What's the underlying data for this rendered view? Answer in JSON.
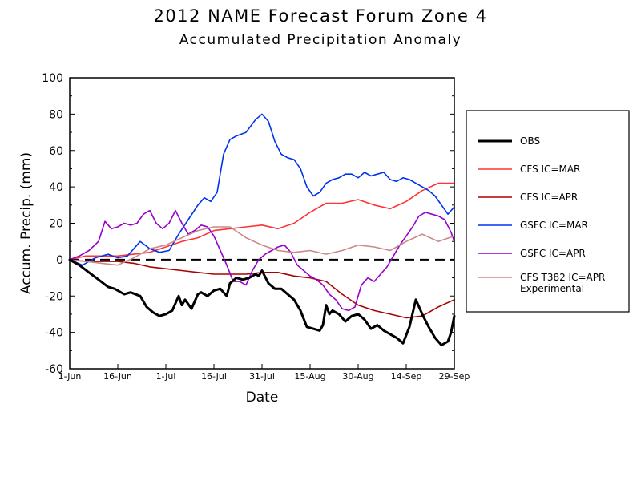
{
  "chart_data": {
    "type": "line",
    "title": "2012 NAME Forecast Forum Zone 4",
    "subtitle": "Accumulated Precipitation Anomaly",
    "xlabel": "Date",
    "ylabel": "Accum. Precip. (mm)",
    "ylim": [
      -60,
      100
    ],
    "xlim": [
      0,
      120
    ],
    "x_ticks": [
      {
        "x": 0,
        "label": "1-Jun"
      },
      {
        "x": 15,
        "label": "16-Jun"
      },
      {
        "x": 30,
        "label": "1-Jul"
      },
      {
        "x": 45,
        "label": "16-Jul"
      },
      {
        "x": 60,
        "label": "31-Jul"
      },
      {
        "x": 75,
        "label": "15-Aug"
      },
      {
        "x": 90,
        "label": "30-Aug"
      },
      {
        "x": 105,
        "label": "14-Sep"
      },
      {
        "x": 120,
        "label": "29-Sep"
      }
    ],
    "y_ticks": [
      -60,
      -40,
      -20,
      0,
      20,
      40,
      60,
      80,
      100
    ],
    "zero_line": true,
    "grid": false,
    "legend_position": "right",
    "series": [
      {
        "name": "OBS",
        "color": "#000000",
        "width": 3,
        "x": [
          0,
          3,
          6,
          9,
          12,
          14,
          17,
          19,
          22,
          24,
          26,
          28,
          30,
          32,
          34,
          35,
          36,
          38,
          40,
          41,
          43,
          45,
          47,
          49,
          50,
          52,
          54,
          56,
          58,
          59,
          60,
          62,
          64,
          66,
          68,
          70,
          72,
          74,
          76,
          78,
          79,
          80,
          81,
          82,
          84,
          86,
          88,
          90,
          92,
          94,
          96,
          98,
          100,
          102,
          104,
          106,
          108,
          110,
          112,
          114,
          116,
          118,
          119,
          120
        ],
        "y": [
          0,
          -3,
          -7,
          -11,
          -15,
          -16,
          -19,
          -18,
          -20,
          -26,
          -29,
          -31,
          -30,
          -28,
          -20,
          -25,
          -22,
          -27,
          -19,
          -18,
          -20,
          -17,
          -16,
          -20,
          -13,
          -10,
          -11,
          -10,
          -8,
          -9,
          -6,
          -13,
          -16,
          -16,
          -19,
          -22,
          -28,
          -37,
          -38,
          -39,
          -36,
          -25,
          -30,
          -28,
          -30,
          -34,
          -31,
          -30,
          -33,
          -38,
          -36,
          -39,
          -41,
          -43,
          -46,
          -37,
          -22,
          -30,
          -37,
          -43,
          -47,
          -45,
          -40,
          -31
        ]
      },
      {
        "name": "CFS IC=MAR",
        "color": "#ff3333",
        "width": 1.6,
        "x": [
          0,
          5,
          10,
          15,
          20,
          25,
          30,
          35,
          40,
          45,
          50,
          55,
          60,
          65,
          70,
          75,
          80,
          85,
          90,
          95,
          100,
          105,
          110,
          115,
          120
        ],
        "y": [
          0,
          2,
          2,
          2,
          3,
          4,
          7,
          10,
          12,
          16,
          17,
          18,
          19,
          17,
          20,
          26,
          31,
          31,
          33,
          30,
          28,
          32,
          38,
          42,
          42
        ]
      },
      {
        "name": "CFS IC=APR",
        "color": "#aa0000",
        "width": 1.6,
        "x": [
          0,
          5,
          10,
          15,
          20,
          25,
          30,
          35,
          40,
          45,
          50,
          55,
          60,
          65,
          70,
          75,
          80,
          85,
          90,
          95,
          100,
          105,
          110,
          115,
          120
        ],
        "y": [
          0,
          -1,
          -1,
          -1,
          -2,
          -4,
          -5,
          -6,
          -7,
          -8,
          -8,
          -8,
          -7,
          -7,
          -9,
          -10,
          -12,
          -19,
          -25,
          -28,
          -30,
          -32,
          -31,
          -26,
          -22
        ]
      },
      {
        "name": "GSFC IC=MAR",
        "color": "#0033ee",
        "width": 1.6,
        "x": [
          0,
          4,
          8,
          12,
          15,
          18,
          22,
          25,
          28,
          31,
          34,
          37,
          40,
          42,
          44,
          46,
          48,
          50,
          52,
          55,
          58,
          60,
          62,
          64,
          66,
          68,
          70,
          72,
          74,
          76,
          78,
          80,
          82,
          84,
          86,
          88,
          90,
          92,
          94,
          96,
          98,
          100,
          102,
          104,
          106,
          108,
          110,
          112,
          114,
          116,
          118,
          120
        ],
        "y": [
          0,
          -3,
          1,
          3,
          1,
          2,
          10,
          6,
          4,
          5,
          14,
          22,
          30,
          34,
          32,
          37,
          58,
          66,
          68,
          70,
          77,
          80,
          76,
          65,
          58,
          56,
          55,
          50,
          40,
          35,
          37,
          42,
          44,
          45,
          47,
          47,
          45,
          48,
          46,
          47,
          48,
          44,
          43,
          45,
          44,
          42,
          40,
          38,
          35,
          30,
          25,
          29
        ]
      },
      {
        "name": "GSFC IC=APR",
        "color": "#9900cc",
        "width": 1.6,
        "x": [
          0,
          3,
          6,
          9,
          11,
          13,
          15,
          17,
          19,
          21,
          23,
          25,
          27,
          29,
          31,
          33,
          35,
          37,
          39,
          41,
          43,
          45,
          47,
          49,
          51,
          53,
          55,
          57,
          59,
          61,
          63,
          65,
          67,
          69,
          71,
          73,
          75,
          77,
          79,
          81,
          83,
          85,
          87,
          89,
          91,
          93,
          95,
          97,
          99,
          101,
          103,
          105,
          107,
          109,
          111,
          113,
          115,
          117,
          119,
          120
        ],
        "y": [
          0,
          2,
          5,
          10,
          21,
          17,
          18,
          20,
          19,
          20,
          25,
          27,
          20,
          17,
          20,
          27,
          20,
          14,
          16,
          19,
          18,
          13,
          5,
          -3,
          -12,
          -12,
          -14,
          -6,
          0,
          3,
          5,
          7,
          8,
          4,
          -3,
          -6,
          -9,
          -11,
          -14,
          -19,
          -22,
          -27,
          -28,
          -26,
          -14,
          -10,
          -12,
          -8,
          -4,
          2,
          8,
          13,
          18,
          24,
          26,
          25,
          24,
          22,
          15,
          10
        ]
      },
      {
        "name": "CFS T382 IC=APR",
        "name_line2": "Experimental",
        "color": "#cc8888",
        "width": 1.6,
        "x": [
          0,
          5,
          10,
          15,
          20,
          25,
          30,
          35,
          40,
          45,
          50,
          55,
          60,
          65,
          70,
          75,
          80,
          85,
          90,
          95,
          100,
          105,
          110,
          115,
          120
        ],
        "y": [
          0,
          -1,
          -2,
          -3,
          1,
          6,
          8,
          12,
          16,
          18,
          18,
          12,
          8,
          5,
          4,
          5,
          3,
          5,
          8,
          7,
          5,
          10,
          14,
          10,
          13
        ]
      }
    ],
    "reference_line": {
      "y": 0,
      "style": "dashed",
      "color": "#000000"
    }
  }
}
